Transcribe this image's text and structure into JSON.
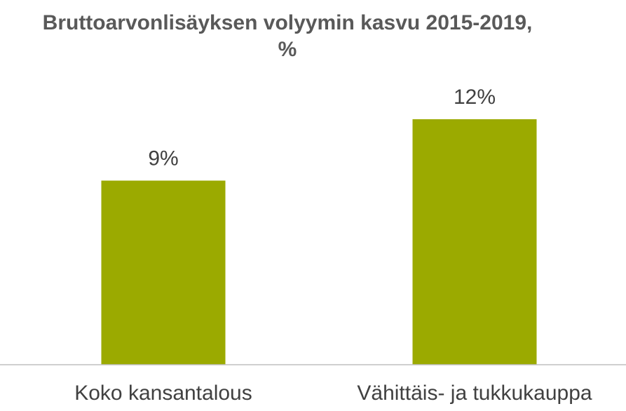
{
  "chart_data": {
    "type": "bar",
    "title": "Bruttoarvonlisäyksen volyymin kasvu 2015-2019, %",
    "categories": [
      "Koko kansantalous",
      "Vähittäis- ja tukkukauppa"
    ],
    "values": [
      9,
      12
    ],
    "value_labels": [
      "9%",
      "12%"
    ],
    "color": "#9baa00"
  }
}
